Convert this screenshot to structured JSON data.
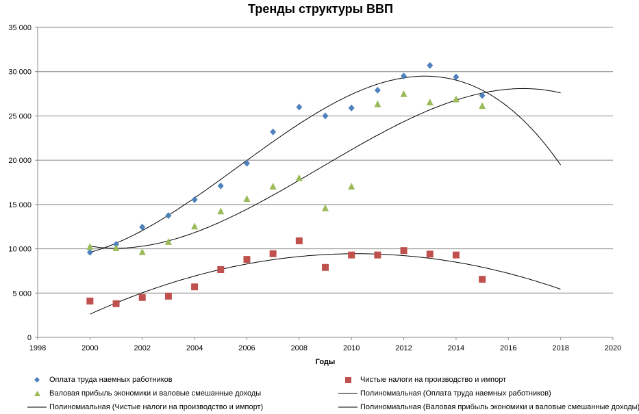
{
  "chart_data": {
    "type": "scatter",
    "title": "Тренды структуры ВВП",
    "xlabel": "Годы",
    "ylabel": "",
    "xlim": [
      1998,
      2020
    ],
    "ylim": [
      0,
      35000
    ],
    "xticks": [
      1998,
      2000,
      2002,
      2004,
      2006,
      2008,
      2010,
      2012,
      2014,
      2016,
      2018,
      2020
    ],
    "yticks": [
      0,
      5000,
      10000,
      15000,
      20000,
      25000,
      30000,
      35000
    ],
    "ytick_labels": [
      "0",
      "5 000",
      "10 000",
      "15 000",
      "20 000",
      "25 000",
      "30 000",
      "35 000"
    ],
    "grid": "horizontal",
    "legend_position": "bottom",
    "x": [
      2000,
      2001,
      2002,
      2003,
      2004,
      2005,
      2006,
      2007,
      2008,
      2009,
      2010,
      2011,
      2012,
      2013,
      2014,
      2015
    ],
    "series": [
      {
        "name": "Оплата труда наемных работников",
        "marker": "diamond",
        "color": "#4f81bd",
        "values": [
          9600,
          10500,
          12450,
          13750,
          15550,
          17100,
          19650,
          23200,
          26000,
          25000,
          25900,
          27900,
          29500,
          30700,
          29400,
          27300
        ]
      },
      {
        "name": "Чистые налоги на производство и импорт",
        "marker": "square",
        "color": "#c0504d",
        "values": [
          4100,
          3800,
          4500,
          4650,
          5700,
          7650,
          8800,
          9450,
          10900,
          7900,
          9300,
          9300,
          9800,
          9400,
          9300,
          6550
        ]
      },
      {
        "name": "Валовая прибыль экономики и валовые смешанные доходы",
        "marker": "triangle",
        "color": "#9bbb59",
        "values": [
          10200,
          10050,
          9600,
          10750,
          12500,
          14200,
          15600,
          17000,
          17950,
          14550,
          17000,
          26300,
          27450,
          26500,
          26850,
          26100
        ]
      }
    ],
    "trendlines": [
      {
        "name": "Полиномиальная (Оплата труда наемных работников)",
        "type": "polynomial",
        "of_series": 0,
        "x_range": [
          2000,
          2018
        ],
        "color": "#000000"
      },
      {
        "name": "Полиномиальная (Чистые налоги на производство и импорт)",
        "type": "polynomial",
        "of_series": 1,
        "x_range": [
          2000,
          2018
        ],
        "color": "#000000"
      },
      {
        "name": "Полиномиальная (Валовая прибыль экономики и валовые смешанные доходы)",
        "type": "polynomial",
        "of_series": 2,
        "x_range": [
          2000,
          2018
        ],
        "color": "#000000"
      }
    ]
  }
}
